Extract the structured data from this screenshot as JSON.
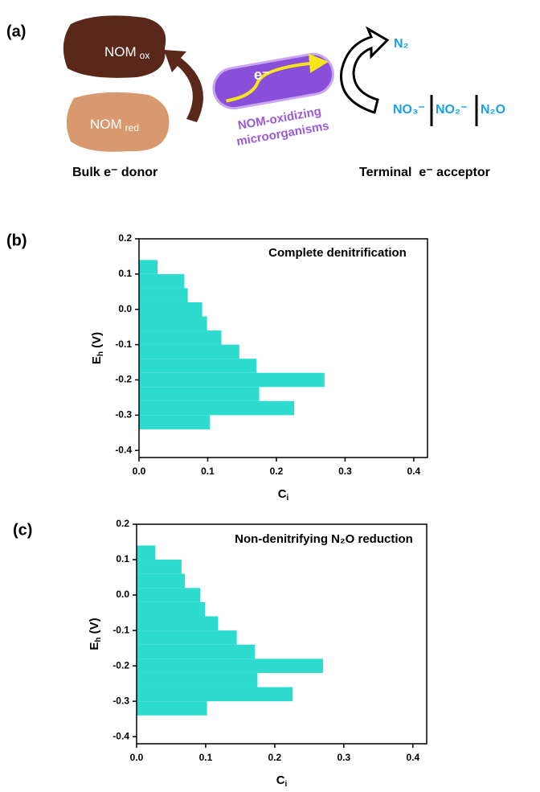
{
  "diagram": {
    "panel": "(a)",
    "nom_ox": {
      "main": "NOM",
      "sub": "ox"
    },
    "nom_red": {
      "main": "NOM",
      "sub": "red"
    },
    "electron": "e⁻",
    "organism": [
      "NOM-oxidizing",
      "microorganisms"
    ],
    "n2": "N₂",
    "acceptors": [
      "NO₃⁻",
      "NO₂⁻",
      "N₂O"
    ],
    "donor_label": "Bulk e⁻ donor",
    "acceptor_label": "Terminal  e⁻ acceptor"
  },
  "chart_data": [
    {
      "type": "histogram",
      "orientation": "horizontal",
      "panel": "(b)",
      "annotation": "Complete denitrification",
      "xlabel": {
        "main": "C",
        "sub": "i"
      },
      "ylabel": {
        "main": "E",
        "sub": "h",
        "after": " (V)"
      },
      "bins": [
        0.14,
        0.1,
        0.06,
        0.02,
        -0.02,
        -0.06,
        -0.1,
        -0.14,
        -0.18,
        -0.22,
        -0.26,
        -0.3,
        -0.34
      ],
      "values": [
        0.027,
        0.066,
        0.071,
        0.092,
        0.099,
        0.12,
        0.146,
        0.171,
        0.27,
        0.175,
        0.226,
        0.103
      ],
      "color": "#2ddcce",
      "xlim": [
        0,
        0.42
      ],
      "ylim": [
        -0.42,
        0.2
      ],
      "xticks": [
        {
          "value": 0,
          "label": "0.0"
        },
        0.1,
        0.2,
        0.3,
        0.4
      ],
      "yticks": [
        0.2,
        0.1,
        {
          "value": 0,
          "label": "0.0"
        },
        -0.1,
        -0.2,
        -0.3,
        -0.4
      ]
    },
    {
      "type": "histogram",
      "orientation": "horizontal",
      "panel": "(c)",
      "annotation": "Non-denitrifying N₂O reduction",
      "xlabel": {
        "main": "C",
        "sub": "i"
      },
      "ylabel": {
        "main": "E",
        "sub": "h",
        "after": " (V)"
      },
      "bins": [
        0.14,
        0.1,
        0.06,
        0.02,
        -0.02,
        -0.06,
        -0.1,
        -0.14,
        -0.18,
        -0.22,
        -0.26,
        -0.3,
        -0.34
      ],
      "values": [
        0.027,
        0.065,
        0.07,
        0.092,
        0.099,
        0.118,
        0.145,
        0.171,
        0.27,
        0.175,
        0.226,
        0.102
      ],
      "color": "#2ddcce",
      "xlim": [
        0,
        0.42
      ],
      "ylim": [
        -0.42,
        0.2
      ],
      "xticks": [
        {
          "value": 0,
          "label": "0.0"
        },
        0.1,
        0.2,
        0.3,
        0.4
      ],
      "yticks": [
        0.2,
        0.1,
        {
          "value": 0,
          "label": "0.0"
        },
        -0.1,
        -0.2,
        -0.3,
        -0.4
      ]
    }
  ]
}
